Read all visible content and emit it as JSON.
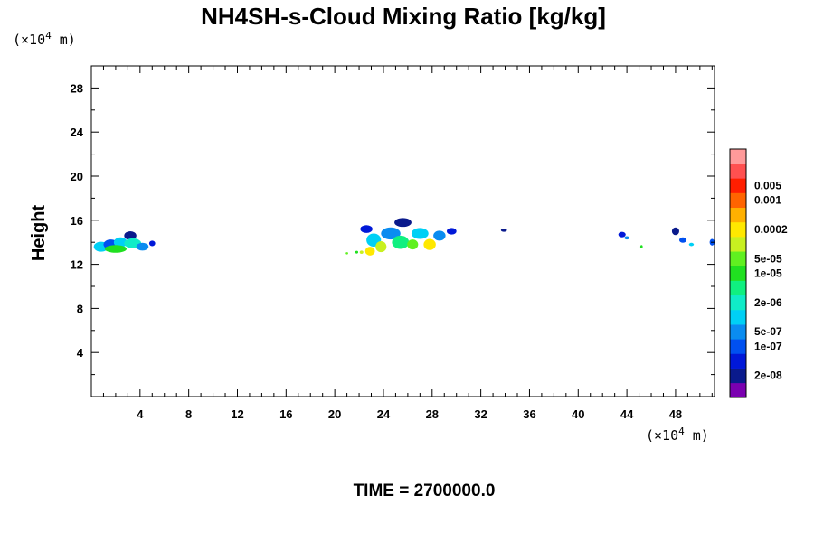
{
  "chart_data": {
    "type": "heatmap",
    "title": "NH4SH-s-Cloud Mixing Ratio [kg/kg]",
    "ylabel": "Height",
    "x_unit": {
      "prefix": "(×10",
      "exp": "4",
      "suffix": " m)"
    },
    "y_unit": {
      "prefix": "(×10",
      "exp": "4",
      "suffix": " m)"
    },
    "xlim": [
      0,
      51.2
    ],
    "ylim": [
      0,
      30
    ],
    "x_ticks": [
      4,
      8,
      12,
      16,
      20,
      24,
      28,
      32,
      36,
      40,
      44,
      48
    ],
    "y_ticks": [
      4,
      8,
      12,
      16,
      20,
      24,
      28
    ],
    "time_label": "TIME = 2700000.0",
    "colorbar": {
      "colors": [
        "#7a00b0",
        "#0a1a8c",
        "#0018d8",
        "#0050f0",
        "#0a8cf0",
        "#00d0f5",
        "#10ecc8",
        "#10f080",
        "#20e020",
        "#60f020",
        "#c8f020",
        "#ffe800",
        "#ffb000",
        "#ff6400",
        "#ff1e00",
        "#ff5050",
        "#ff9a9a"
      ],
      "labels": [
        {
          "text": "2e-08",
          "level": 1
        },
        {
          "text": "1e-07",
          "level": 3
        },
        {
          "text": "5e-07",
          "level": 4
        },
        {
          "text": "2e-06",
          "level": 6
        },
        {
          "text": "1e-05",
          "level": 8
        },
        {
          "text": "5e-05",
          "level": 9
        },
        {
          "text": "0.0002",
          "level": 11
        },
        {
          "text": "0.001",
          "level": 13
        },
        {
          "text": "0.005",
          "level": 14
        }
      ]
    },
    "cloud_cells": [
      {
        "x": 0.8,
        "y": 13.6,
        "wx": 1.2,
        "wy": 0.9,
        "level": 5
      },
      {
        "x": 1.6,
        "y": 13.8,
        "wx": 1.2,
        "wy": 0.9,
        "level": 3
      },
      {
        "x": 2.4,
        "y": 14.0,
        "wx": 1.1,
        "wy": 0.9,
        "level": 5
      },
      {
        "x": 2.0,
        "y": 13.4,
        "wx": 1.8,
        "wy": 0.7,
        "level": 8
      },
      {
        "x": 3.2,
        "y": 14.6,
        "wx": 1.0,
        "wy": 0.8,
        "level": 1
      },
      {
        "x": 3.4,
        "y": 13.9,
        "wx": 1.4,
        "wy": 0.9,
        "level": 6
      },
      {
        "x": 4.2,
        "y": 13.6,
        "wx": 1.0,
        "wy": 0.7,
        "level": 4
      },
      {
        "x": 5.0,
        "y": 13.9,
        "wx": 0.5,
        "wy": 0.5,
        "level": 2
      },
      {
        "x": 22.6,
        "y": 15.2,
        "wx": 1.0,
        "wy": 0.7,
        "level": 2
      },
      {
        "x": 23.2,
        "y": 14.2,
        "wx": 1.2,
        "wy": 1.2,
        "level": 5
      },
      {
        "x": 22.9,
        "y": 13.2,
        "wx": 0.8,
        "wy": 0.8,
        "level": 11
      },
      {
        "x": 23.8,
        "y": 13.6,
        "wx": 0.9,
        "wy": 1.0,
        "level": 10
      },
      {
        "x": 24.6,
        "y": 14.8,
        "wx": 1.6,
        "wy": 1.1,
        "level": 4
      },
      {
        "x": 25.6,
        "y": 15.8,
        "wx": 1.4,
        "wy": 0.8,
        "level": 1
      },
      {
        "x": 25.4,
        "y": 14.0,
        "wx": 1.4,
        "wy": 1.2,
        "level": 7
      },
      {
        "x": 26.4,
        "y": 13.8,
        "wx": 0.9,
        "wy": 0.9,
        "level": 9
      },
      {
        "x": 27.0,
        "y": 14.8,
        "wx": 1.4,
        "wy": 1.0,
        "level": 5
      },
      {
        "x": 27.8,
        "y": 13.8,
        "wx": 1.0,
        "wy": 1.0,
        "level": 11
      },
      {
        "x": 28.6,
        "y": 14.6,
        "wx": 1.0,
        "wy": 0.9,
        "level": 4
      },
      {
        "x": 29.6,
        "y": 15.0,
        "wx": 0.8,
        "wy": 0.6,
        "level": 2
      },
      {
        "x": 21.0,
        "y": 13.0,
        "wx": 0.2,
        "wy": 0.2,
        "level": 9
      },
      {
        "x": 21.8,
        "y": 13.1,
        "wx": 0.25,
        "wy": 0.25,
        "level": 8
      },
      {
        "x": 22.2,
        "y": 13.1,
        "wx": 0.3,
        "wy": 0.3,
        "level": 10
      },
      {
        "x": 33.9,
        "y": 15.1,
        "wx": 0.5,
        "wy": 0.3,
        "level": 1
      },
      {
        "x": 43.6,
        "y": 14.7,
        "wx": 0.6,
        "wy": 0.5,
        "level": 2
      },
      {
        "x": 44.0,
        "y": 14.4,
        "wx": 0.4,
        "wy": 0.3,
        "level": 4
      },
      {
        "x": 45.2,
        "y": 13.6,
        "wx": 0.2,
        "wy": 0.3,
        "level": 8
      },
      {
        "x": 48.0,
        "y": 15.0,
        "wx": 0.6,
        "wy": 0.7,
        "level": 1
      },
      {
        "x": 48.6,
        "y": 14.2,
        "wx": 0.6,
        "wy": 0.5,
        "level": 3
      },
      {
        "x": 49.3,
        "y": 13.8,
        "wx": 0.4,
        "wy": 0.3,
        "level": 5
      },
      {
        "x": 51.0,
        "y": 14.0,
        "wx": 0.4,
        "wy": 0.6,
        "level": 3
      }
    ]
  }
}
